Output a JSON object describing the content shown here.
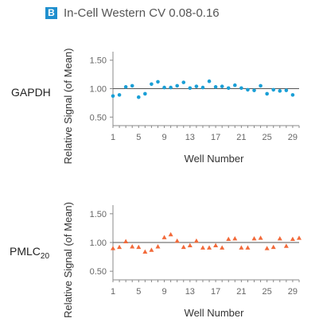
{
  "header": {
    "badge": "B",
    "title": "In-Cell Western CV 0.08-0.16"
  },
  "colors": {
    "gapdh": "#1a9fd6",
    "pmlc": "#f26a3a",
    "badge": "#1f8fce",
    "mean_line": "#555555"
  },
  "chart_data": [
    {
      "type": "scatter",
      "row_label": "GAPDH",
      "marker": "circle",
      "xlabel": "Well Number",
      "ylabel": "Relative Signal (of Mean)",
      "xlim": [
        1,
        30
      ],
      "ylim": [
        0.35,
        1.65
      ],
      "xticks": [
        "1",
        "5",
        "9",
        "13",
        "17",
        "21",
        "25",
        "29"
      ],
      "yticks": [
        "0.50",
        "1.00",
        "1.50"
      ],
      "mean_line": 1.0,
      "x": [
        1,
        2,
        3,
        4,
        5,
        6,
        7,
        8,
        9,
        10,
        11,
        12,
        13,
        14,
        15,
        16,
        17,
        18,
        19,
        20,
        21,
        22,
        23,
        24,
        25,
        26,
        27,
        28,
        29,
        30
      ],
      "y": [
        0.87,
        0.89,
        1.03,
        1.05,
        0.85,
        0.91,
        1.08,
        1.12,
        1.02,
        1.02,
        1.05,
        1.11,
        1.01,
        1.04,
        1.02,
        1.13,
        1.03,
        1.04,
        1.01,
        1.06,
        1.01,
        0.98,
        0.97,
        1.05,
        0.91,
        0.98,
        0.96,
        0.97,
        0.89,
        null
      ]
    },
    {
      "type": "scatter",
      "row_label": "PMLC",
      "row_label_sub": "20",
      "marker": "triangle",
      "xlabel": "Well Number",
      "ylabel": "Relative Signal (of Mean)",
      "xlim": [
        1,
        30
      ],
      "ylim": [
        0.35,
        1.65
      ],
      "xticks": [
        "1",
        "5",
        "9",
        "13",
        "17",
        "21",
        "25",
        "29"
      ],
      "yticks": [
        "0.50",
        "1.00",
        "1.50"
      ],
      "mean_line": 1.0,
      "x": [
        1,
        2,
        3,
        4,
        5,
        6,
        7,
        8,
        9,
        10,
        11,
        12,
        13,
        14,
        15,
        16,
        17,
        18,
        19,
        20,
        21,
        22,
        23,
        24,
        25,
        26,
        27,
        28,
        29,
        30
      ],
      "y": [
        0.9,
        0.92,
        1.02,
        0.93,
        0.92,
        0.84,
        0.87,
        0.93,
        1.09,
        1.14,
        1.03,
        0.92,
        0.95,
        1.03,
        0.91,
        0.91,
        0.95,
        0.91,
        1.06,
        1.07,
        0.91,
        0.91,
        1.07,
        1.08,
        0.9,
        0.92,
        1.07,
        0.94,
        1.06,
        1.08
      ]
    }
  ]
}
